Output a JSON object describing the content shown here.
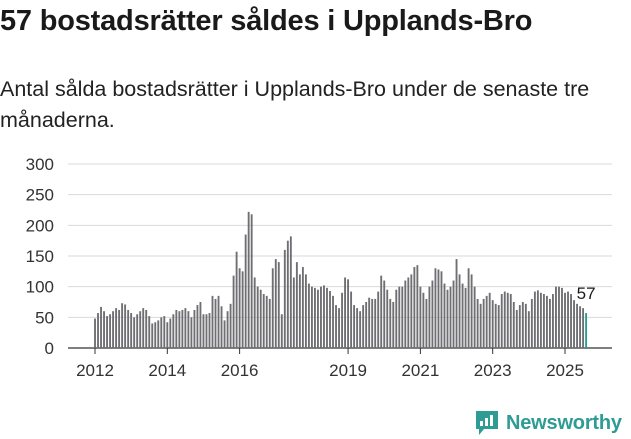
{
  "header": {
    "title": "57 bostadsrätter såldes i Upplands-Bro",
    "subtitle": "Antal sålda bostadsrätter i Upplands-Bro under de senaste tre månaderna."
  },
  "brand": {
    "name": "Newsworthy",
    "icon": "newsworthy-logo-icon",
    "color": "#2e9b95"
  },
  "colors": {
    "bar": "#6e6e73",
    "highlight": "#2a9d8f",
    "grid": "#d9d9d9"
  },
  "chart_data": {
    "type": "bar",
    "title": "",
    "xlabel": "",
    "ylabel": "",
    "ylim": [
      0,
      300
    ],
    "yticks": [
      "0",
      "50",
      "100",
      "150",
      "200",
      "250",
      "300"
    ],
    "xticks": [
      {
        "label": "2012",
        "x": "2012-01"
      },
      {
        "label": "2014",
        "x": "2014-01"
      },
      {
        "label": "2016",
        "x": "2016-01"
      },
      {
        "label": "2019",
        "x": "2019-01"
      },
      {
        "label": "2021",
        "x": "2021-01"
      },
      {
        "label": "2023",
        "x": "2023-01"
      },
      {
        "label": "2025",
        "x": "2025-01"
      }
    ],
    "grid": true,
    "start_month": "2012-01",
    "end_month": "2025-06",
    "values": [
      48,
      57,
      67,
      60,
      52,
      55,
      60,
      65,
      62,
      73,
      71,
      62,
      57,
      50,
      55,
      60,
      65,
      62,
      52,
      40,
      42,
      45,
      50,
      52,
      42,
      48,
      55,
      62,
      60,
      62,
      65,
      60,
      50,
      62,
      70,
      75,
      55,
      55,
      57,
      85,
      80,
      85,
      68,
      45,
      60,
      72,
      118,
      157,
      130,
      125,
      185,
      222,
      218,
      115,
      100,
      95,
      88,
      85,
      80,
      130,
      145,
      140,
      55,
      160,
      175,
      182,
      115,
      140,
      120,
      132,
      120,
      105,
      100,
      98,
      95,
      100,
      102,
      98,
      93,
      85,
      70,
      65,
      90,
      115,
      112,
      92,
      70,
      65,
      60,
      70,
      75,
      82,
      80,
      80,
      92,
      118,
      110,
      95,
      80,
      75,
      95,
      100,
      100,
      110,
      115,
      120,
      132,
      135,
      100,
      90,
      80,
      100,
      110,
      130,
      128,
      125,
      105,
      95,
      100,
      110,
      145,
      120,
      105,
      98,
      130,
      120,
      100,
      80,
      72,
      80,
      85,
      90,
      78,
      72,
      70,
      88,
      92,
      90,
      88,
      75,
      62,
      70,
      75,
      72,
      60,
      80,
      92,
      94,
      90,
      88,
      85,
      80,
      88,
      100,
      100,
      98,
      90,
      92,
      88,
      78,
      72,
      68,
      65,
      57
    ],
    "highlight_last": true,
    "annotation": "57"
  }
}
